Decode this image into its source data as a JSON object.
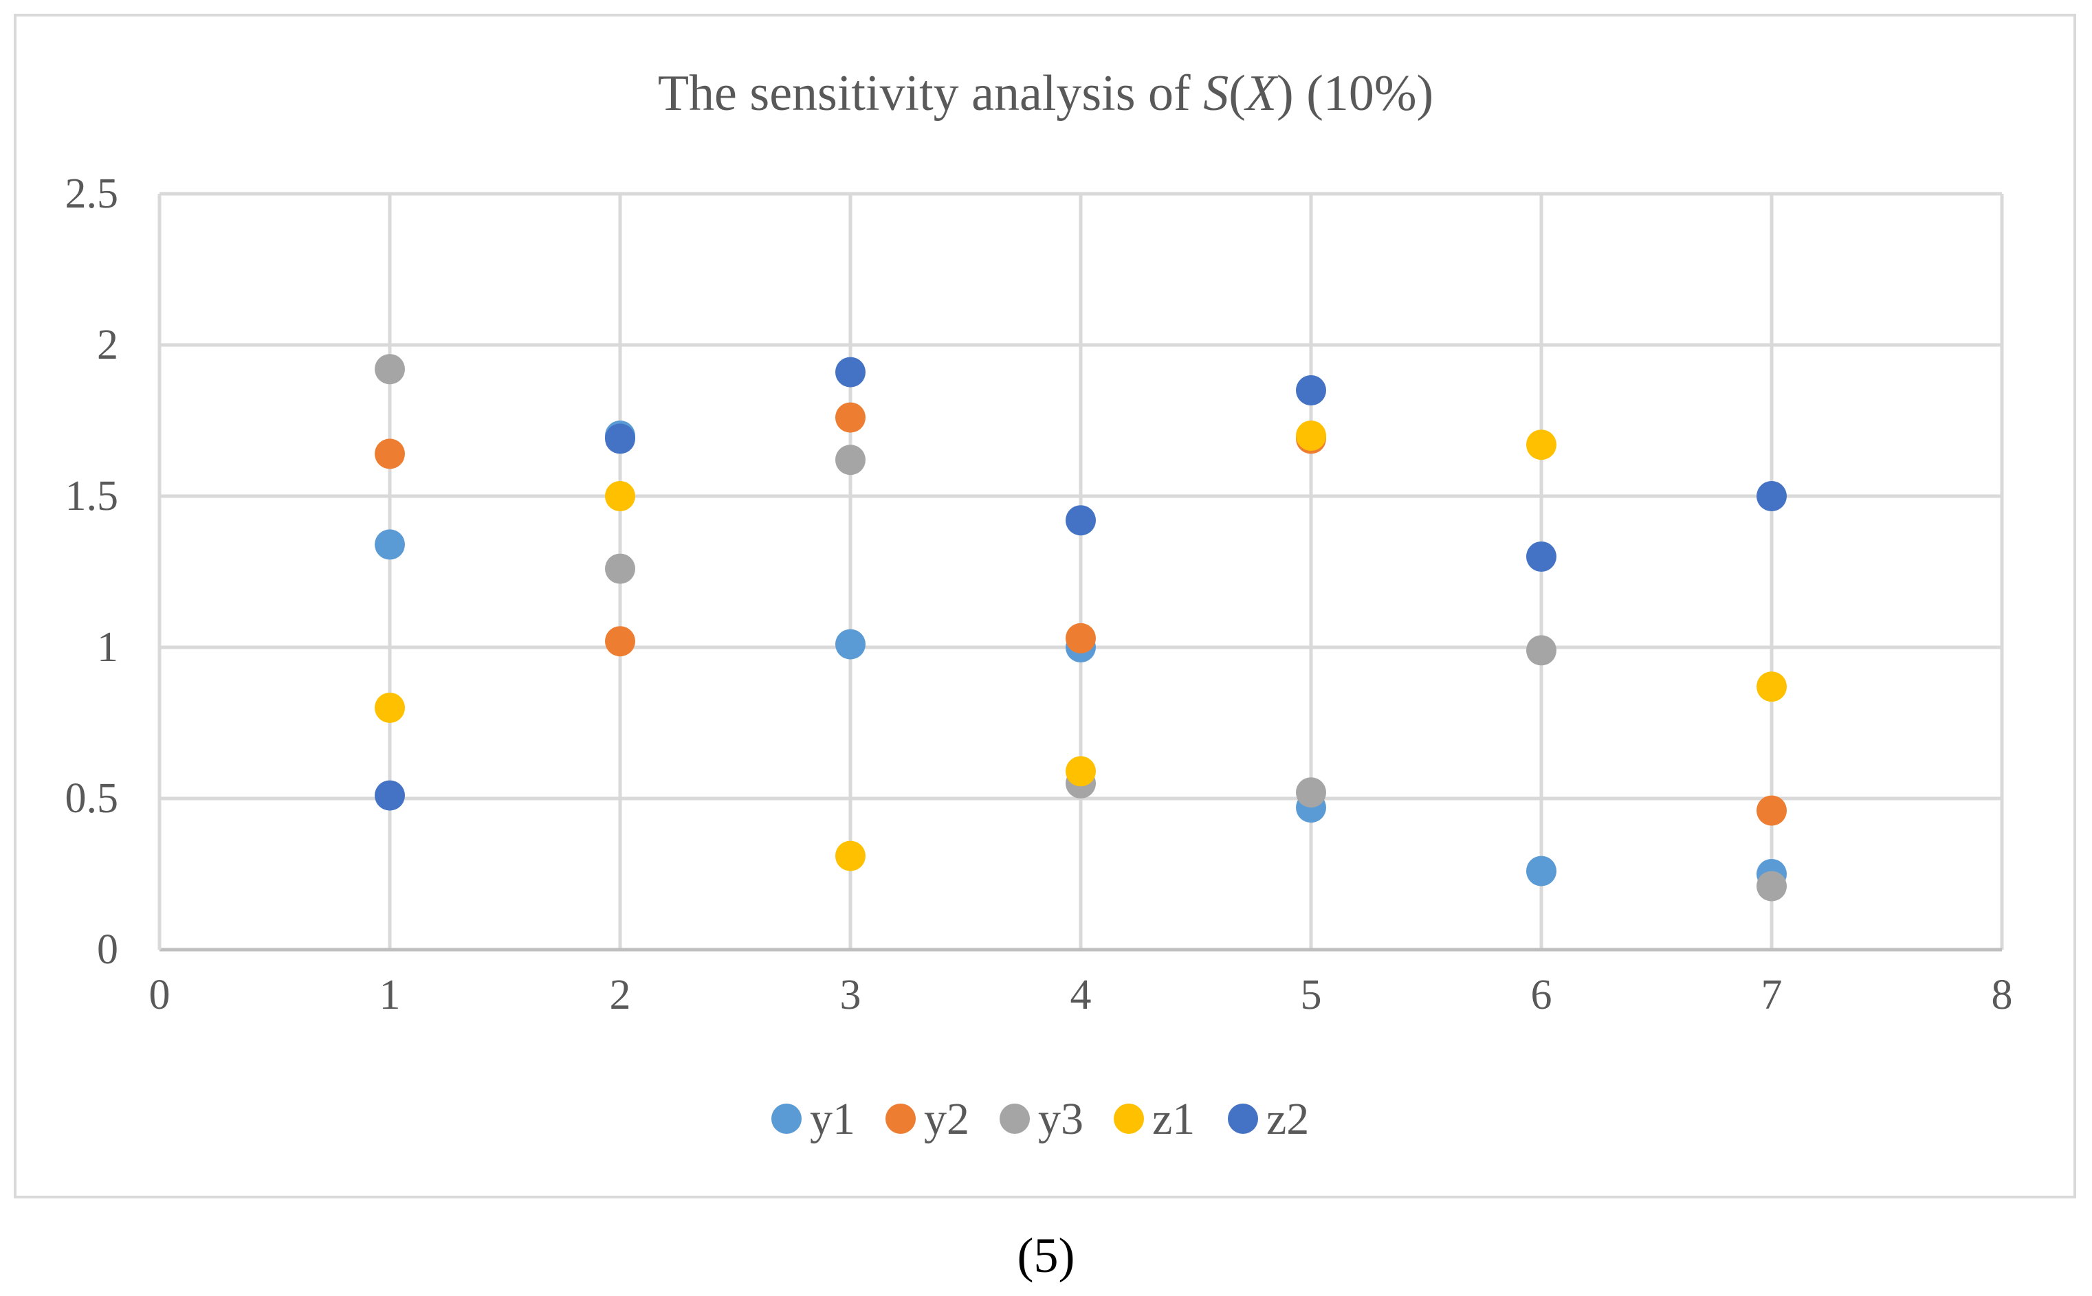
{
  "caption": "(5)",
  "chart_data": {
    "type": "scatter",
    "title": {
      "prefix": "The sensitivity analysis of ",
      "italic_s": "S",
      "open_paren": "(",
      "italic_x": "X",
      "close_paren": ")",
      "suffix": " (10%)"
    },
    "xlabel": "",
    "ylabel": "",
    "xlim": [
      0,
      8
    ],
    "ylim": [
      0,
      2.5
    ],
    "x_ticks": [
      "0",
      "1",
      "2",
      "3",
      "4",
      "5",
      "6",
      "7",
      "8"
    ],
    "y_ticks": [
      "0",
      "0.5",
      "1",
      "1.5",
      "2",
      "2.5"
    ],
    "grid": true,
    "legend_position": "bottom",
    "x": [
      1,
      2,
      3,
      4,
      5,
      6,
      7
    ],
    "series": [
      {
        "name": "y1",
        "color": "#5B9BD5",
        "values": [
          1.34,
          1.7,
          1.01,
          1.0,
          0.47,
          0.26,
          0.25
        ]
      },
      {
        "name": "y2",
        "color": "#ED7D31",
        "values": [
          1.64,
          1.02,
          1.76,
          1.03,
          1.69,
          null,
          0.46
        ]
      },
      {
        "name": "y3",
        "color": "#A5A5A5",
        "values": [
          1.92,
          1.26,
          1.62,
          0.55,
          0.52,
          0.99,
          0.21
        ]
      },
      {
        "name": "z1",
        "color": "#FFC000",
        "values": [
          0.8,
          1.5,
          0.31,
          0.59,
          1.7,
          1.67,
          0.87
        ]
      },
      {
        "name": "z2",
        "color": "#4472C4",
        "values": [
          0.51,
          1.69,
          1.91,
          1.42,
          1.85,
          1.3,
          1.5
        ]
      }
    ]
  }
}
